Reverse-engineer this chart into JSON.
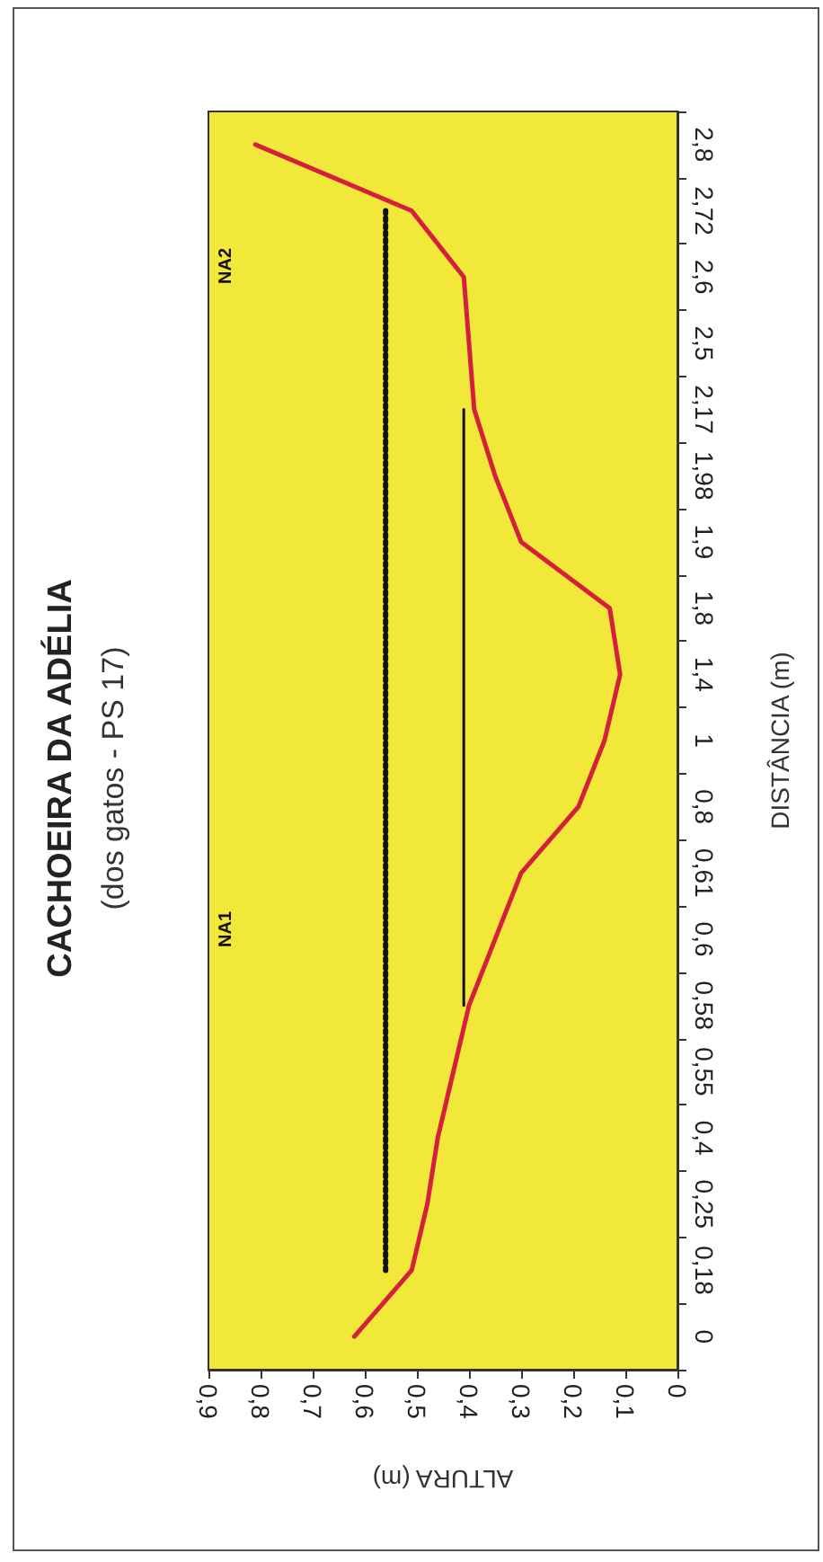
{
  "chart_data": {
    "type": "line",
    "orientation": "horizontal",
    "title": "CACHOEIRA DA ADÉLIA",
    "subtitle": "(dos gatos - PS 17)",
    "xlabel": "ALTURA (m)",
    "ylabel": "DISTÂNCIA (m)",
    "categories": [
      "2,8",
      "2,72",
      "2,6",
      "2,5",
      "2,17",
      "1,98",
      "1,9",
      "1,8",
      "1,4",
      "1",
      "0,8",
      "0,61",
      "0,6",
      "0,58",
      "0,55",
      "0,4",
      "0,25",
      "0,18",
      "0"
    ],
    "series": [
      {
        "color": "#d4203c",
        "line_style": "solid",
        "values": [
          0.81,
          0.51,
          0.41,
          0.4,
          0.39,
          0.35,
          0.3,
          0.13,
          0.11,
          0.14,
          0.19,
          0.3,
          0.35,
          0.4,
          0.43,
          0.46,
          0.48,
          0.51,
          0.62
        ]
      },
      {
        "color": "#111111",
        "line_style": "dotted",
        "values": [
          null,
          0.56,
          0.56,
          0.56,
          0.56,
          0.56,
          0.56,
          0.56,
          0.56,
          0.56,
          0.56,
          0.56,
          0.56,
          0.56,
          0.56,
          0.56,
          0.56,
          0.56,
          null
        ]
      },
      {
        "color": "#111111",
        "line_style": "solid",
        "values": [
          null,
          null,
          null,
          null,
          0.41,
          0.41,
          0.41,
          0.41,
          0.41,
          0.41,
          0.41,
          0.41,
          0.41,
          0.41,
          null,
          null,
          null,
          null,
          null
        ]
      }
    ],
    "xlim": [
      0.9,
      0
    ],
    "xticks": [
      {
        "value": 0.9,
        "label": "0,9"
      },
      {
        "value": 0.8,
        "label": "0,8"
      },
      {
        "value": 0.7,
        "label": "0,7"
      },
      {
        "value": 0.6,
        "label": "0,6"
      },
      {
        "value": 0.5,
        "label": "0,5"
      },
      {
        "value": 0.4,
        "label": "0,4"
      },
      {
        "value": 0.3,
        "label": "0,3"
      },
      {
        "value": 0.2,
        "label": "0,2"
      },
      {
        "value": 0.1,
        "label": "0,1"
      },
      {
        "value": 0,
        "label": "0"
      }
    ],
    "annotations": [
      "NA2",
      "NA1"
    ],
    "marker": "none",
    "grid": false
  }
}
